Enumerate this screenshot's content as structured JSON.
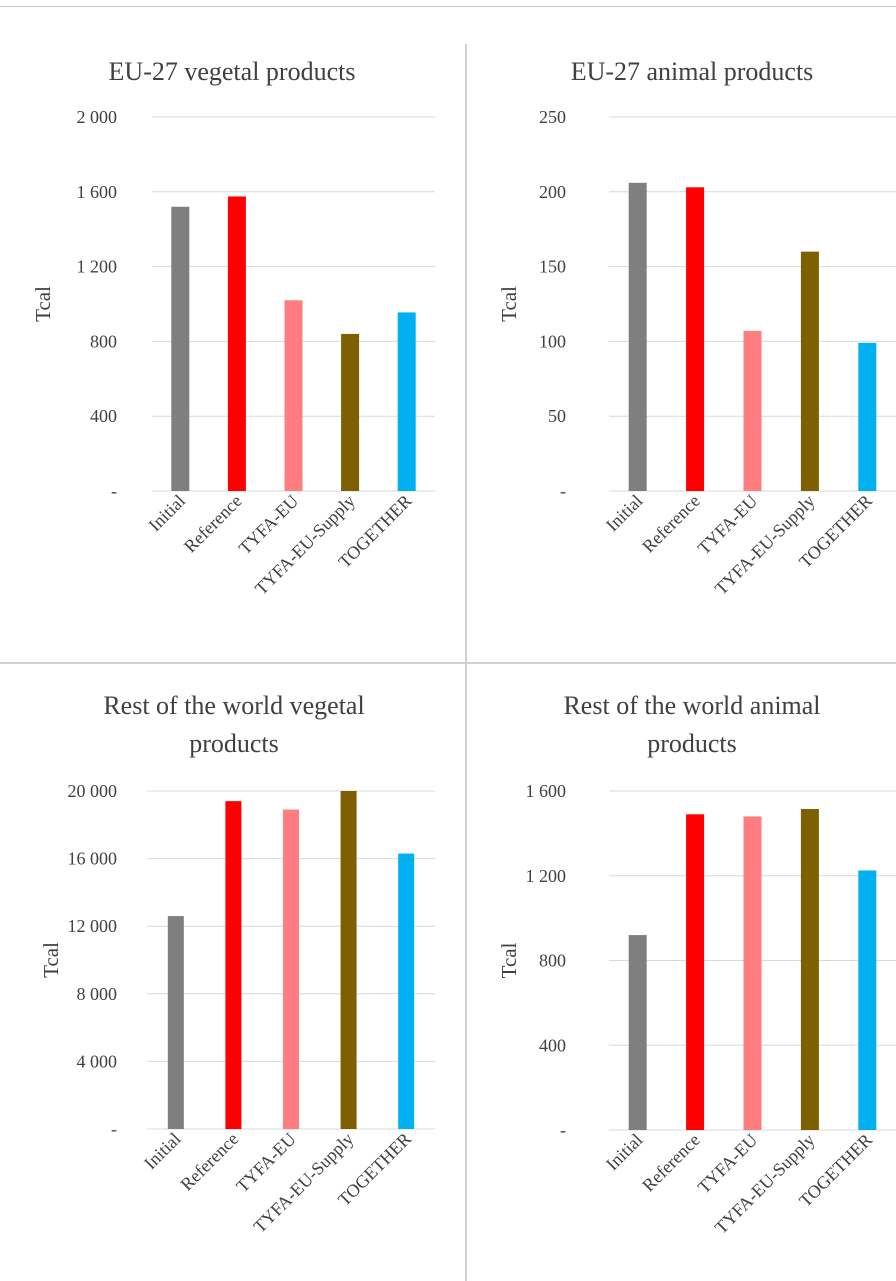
{
  "chart_data": [
    {
      "type": "bar",
      "title": "EU-27 vegetal products",
      "ylabel": "Tcal",
      "categories": [
        "Initial",
        "Reference",
        "TYFA-EU",
        "TYFA-EU-Supply",
        "TOGETHER"
      ],
      "values": [
        1520,
        1575,
        1020,
        840,
        955
      ],
      "colors": [
        "#7f7f7f",
        "#ff0000",
        "#ff7c80",
        "#7f6000",
        "#00b0f0"
      ],
      "ylim": [
        0,
        2000
      ],
      "yticks": [
        0,
        400,
        800,
        1200,
        1600,
        2000
      ],
      "ytick_labels": [
        "-",
        "400",
        "800",
        "1 200",
        "1 600",
        "2 000"
      ],
      "grid": true
    },
    {
      "type": "bar",
      "title": "EU-27 animal products",
      "ylabel": "Tcal",
      "categories": [
        "Initial",
        "Reference",
        "TYFA-EU",
        "TYFA-EU-Supply",
        "TOGETHER"
      ],
      "values": [
        206,
        203,
        107,
        160,
        99
      ],
      "colors": [
        "#7f7f7f",
        "#ff0000",
        "#ff7c80",
        "#7f6000",
        "#00b0f0"
      ],
      "ylim": [
        0,
        250
      ],
      "yticks": [
        0,
        50,
        100,
        150,
        200,
        250
      ],
      "ytick_labels": [
        "-",
        "50",
        "100",
        "150",
        "200",
        "250"
      ],
      "grid": true
    },
    {
      "type": "bar",
      "title": [
        "Rest of the world vegetal",
        "products"
      ],
      "ylabel": "Tcal",
      "categories": [
        "Initial",
        "Reference",
        "TYFA-EU",
        "TYFA-EU-Supply",
        "TOGETHER"
      ],
      "values": [
        12600,
        19400,
        18900,
        20000,
        16300
      ],
      "colors": [
        "#7f7f7f",
        "#ff0000",
        "#ff7c80",
        "#7f6000",
        "#00b0f0"
      ],
      "ylim": [
        0,
        20000
      ],
      "yticks": [
        0,
        4000,
        8000,
        12000,
        16000,
        20000
      ],
      "ytick_labels": [
        "-",
        "4 000",
        "8 000",
        "12 000",
        "16 000",
        "20 000"
      ],
      "grid": true
    },
    {
      "type": "bar",
      "title": [
        "Rest of the world animal",
        "products"
      ],
      "ylabel": "Tcal",
      "categories": [
        "Initial",
        "Reference",
        "TYFA-EU",
        "TYFA-EU-Supply",
        "TOGETHER"
      ],
      "values": [
        920,
        1490,
        1480,
        1515,
        1225
      ],
      "colors": [
        "#7f7f7f",
        "#ff0000",
        "#ff7c80",
        "#7f6000",
        "#00b0f0"
      ],
      "ylim": [
        0,
        1600
      ],
      "yticks": [
        0,
        400,
        800,
        1200,
        1600
      ],
      "ytick_labels": [
        "-",
        "400",
        "800",
        "1 200",
        "1 600"
      ],
      "grid": true
    }
  ]
}
